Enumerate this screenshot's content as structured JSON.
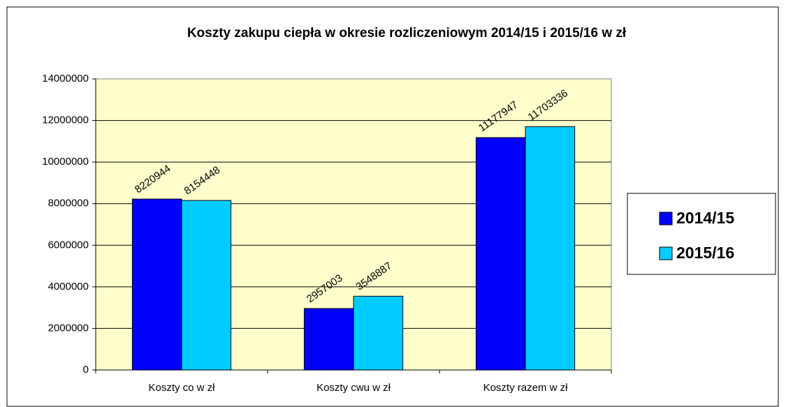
{
  "chart_data": {
    "type": "bar",
    "title": "Koszty zakupu ciepła w okresie rozliczeniowym 2014/15 i 2015/16 w zł",
    "categories": [
      "Koszty co w zł",
      "Koszty cwu w zł",
      "Koszty razem w zł"
    ],
    "series": [
      {
        "name": "2014/15",
        "color": "#0000ff",
        "values": [
          8220944,
          2957003,
          11177947
        ]
      },
      {
        "name": "2015/16",
        "color": "#00ccff",
        "values": [
          8154448,
          3548887,
          11703336
        ]
      }
    ],
    "ylim": [
      0,
      14000000
    ],
    "yticks": [
      0,
      2000000,
      4000000,
      6000000,
      8000000,
      10000000,
      12000000,
      14000000
    ],
    "grid": true,
    "legend": "right"
  }
}
